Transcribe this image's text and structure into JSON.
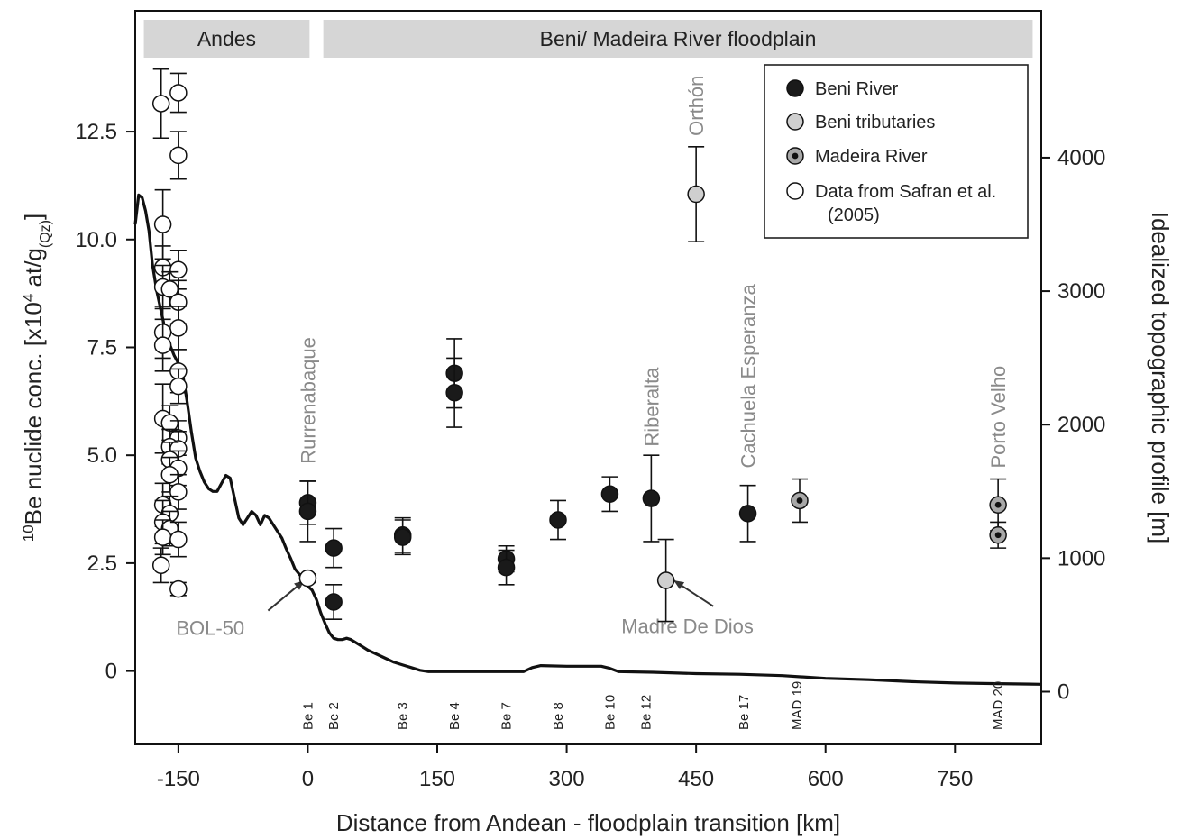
{
  "chart_data": {
    "type": "scatter",
    "xlabel": "Distance from Andean - floodplain transition [km]",
    "ylabel_prefix": "10",
    "ylabel_main": "Be nuclide conc. [x10",
    "ylabel_exp": "4",
    "ylabel_mid": " at/g",
    "ylabel_sub": "(Qz)",
    "ylabel_end": "]",
    "y2label": "Idealized topographic profile [m]",
    "xlim": [
      -200,
      850
    ],
    "ylim": [
      -1.7,
      15.3
    ],
    "y2lim": [
      -395,
      5100
    ],
    "x_ticks": [
      -150,
      0,
      150,
      300,
      450,
      600,
      750
    ],
    "x_tick_labels": [
      "-150",
      "0",
      "150",
      "300",
      "450",
      "600",
      "750"
    ],
    "y_ticks": [
      0,
      2.5,
      5.0,
      7.5,
      10.0,
      12.5
    ],
    "y_tick_labels": [
      "0",
      "2.5",
      "5.0",
      "7.5",
      "10.0",
      "12.5"
    ],
    "y2_ticks": [
      0,
      1000,
      2000,
      3000,
      4000
    ],
    "y2_tick_labels": [
      "0",
      "1000",
      "2000",
      "3000",
      "4000"
    ],
    "bands": [
      {
        "label": "Andes",
        "x0": -190,
        "x1": 2
      },
      {
        "label": "Beni/ Madeira River floodplain",
        "x0": 18,
        "x1": 840
      }
    ],
    "legend": [
      {
        "label": "Beni River",
        "style": "black",
        "color": "#1a1a1a"
      },
      {
        "label": "Beni tributaries",
        "style": "gray",
        "color": "#cfcfcf"
      },
      {
        "label": "Madeira River",
        "style": "dot",
        "color": "#7a7a7a"
      },
      {
        "label": "Data from Safran et al.",
        "label2": "(2005)",
        "style": "white",
        "color": "#ffffff"
      }
    ],
    "series": [
      {
        "name": "Beni River",
        "style": "black",
        "points": [
          {
            "x": 0,
            "y": 3.9,
            "err": 0.5
          },
          {
            "x": 0,
            "y": 3.7,
            "err": 0.7
          },
          {
            "x": 30,
            "y": 2.85,
            "err": 0.45
          },
          {
            "x": 30,
            "y": 1.6,
            "err": 0.4
          },
          {
            "x": 110,
            "y": 3.15,
            "err": 0.4
          },
          {
            "x": 110,
            "y": 3.1,
            "err": 0.4
          },
          {
            "x": 170,
            "y": 6.9,
            "err": 0.8
          },
          {
            "x": 170,
            "y": 6.45,
            "err": 0.8
          },
          {
            "x": 230,
            "y": 2.6,
            "err": 0.3
          },
          {
            "x": 230,
            "y": 2.4,
            "err": 0.4
          },
          {
            "x": 290,
            "y": 3.5,
            "err": 0.45
          },
          {
            "x": 350,
            "y": 4.1,
            "err": 0.4
          },
          {
            "x": 398,
            "y": 4.0,
            "err": 1.0
          },
          {
            "x": 510,
            "y": 3.65,
            "err": 0.65
          }
        ]
      },
      {
        "name": "Beni tributaries",
        "style": "gray",
        "points": [
          {
            "x": 450,
            "y": 11.05,
            "err": 1.1
          },
          {
            "x": 415,
            "y": 2.1,
            "err": 0.95
          }
        ]
      },
      {
        "name": "Madeira River",
        "style": "dot",
        "points": [
          {
            "x": 570,
            "y": 3.95,
            "err": 0.5
          },
          {
            "x": 800,
            "y": 3.85,
            "err": 0.6
          },
          {
            "x": 800,
            "y": 3.15,
            "err": 0.3
          }
        ]
      },
      {
        "name": "Data from Safran et al. (2005)",
        "style": "white",
        "points": [
          {
            "x": -170,
            "y": 13.15,
            "err": 0.8
          },
          {
            "x": -150,
            "y": 13.4,
            "err": 0.45
          },
          {
            "x": -150,
            "y": 11.95,
            "err": 0.55
          },
          {
            "x": -168,
            "y": 10.35,
            "err": 0.8
          },
          {
            "x": -168,
            "y": 9.35,
            "err": 0.5
          },
          {
            "x": -150,
            "y": 9.3,
            "err": 0.45
          },
          {
            "x": -168,
            "y": 8.9,
            "err": 0.5
          },
          {
            "x": -160,
            "y": 8.85,
            "err": 0.4
          },
          {
            "x": -150,
            "y": 8.55,
            "err": 0.5
          },
          {
            "x": -150,
            "y": 7.95,
            "err": 0.5
          },
          {
            "x": -168,
            "y": 7.85,
            "err": 0.6
          },
          {
            "x": -168,
            "y": 7.55,
            "err": 0.6
          },
          {
            "x": -150,
            "y": 6.95,
            "err": 0.5
          },
          {
            "x": -150,
            "y": 6.6,
            "err": 0.4
          },
          {
            "x": -168,
            "y": 5.85,
            "err": 0.8
          },
          {
            "x": -160,
            "y": 5.75,
            "err": 0.4
          },
          {
            "x": -150,
            "y": 5.4,
            "err": 0.4
          },
          {
            "x": -160,
            "y": 5.2,
            "err": 0.4
          },
          {
            "x": -150,
            "y": 5.15,
            "err": 0.4
          },
          {
            "x": -160,
            "y": 4.9,
            "err": 0.4
          },
          {
            "x": -150,
            "y": 4.7,
            "err": 0.4
          },
          {
            "x": -160,
            "y": 4.55,
            "err": 0.4
          },
          {
            "x": -150,
            "y": 4.15,
            "err": 0.4
          },
          {
            "x": -168,
            "y": 3.85,
            "err": 0.5
          },
          {
            "x": -160,
            "y": 3.65,
            "err": 0.4
          },
          {
            "x": -168,
            "y": 3.45,
            "err": 0.5
          },
          {
            "x": -160,
            "y": 3.3,
            "err": 0.4
          },
          {
            "x": -168,
            "y": 3.1,
            "err": 0.4
          },
          {
            "x": -150,
            "y": 3.05,
            "err": 0.4
          },
          {
            "x": -170,
            "y": 2.45,
            "err": 0.4
          },
          {
            "x": -150,
            "y": 1.9,
            "err": 0.15
          },
          {
            "x": 0,
            "y": 2.15,
            "err": 0.1
          }
        ]
      }
    ],
    "topo_profile": {
      "x": [
        -200,
        -196,
        -192,
        -188,
        -184,
        -180,
        -175,
        -170,
        -165,
        -160,
        -155,
        -150,
        -145,
        -140,
        -135,
        -130,
        -125,
        -120,
        -115,
        -110,
        -105,
        -100,
        -95,
        -90,
        -85,
        -80,
        -75,
        -70,
        -65,
        -60,
        -55,
        -50,
        -45,
        -40,
        -35,
        -30,
        -25,
        -20,
        -15,
        -10,
        -5,
        0,
        5,
        10,
        15,
        20,
        25,
        30,
        35,
        40,
        45,
        50,
        60,
        70,
        80,
        90,
        100,
        110,
        120,
        130,
        140,
        150,
        160,
        200,
        250,
        260,
        270,
        300,
        340,
        350,
        360,
        400,
        450,
        500,
        550,
        600,
        650,
        700,
        750,
        800,
        850
      ],
      "y": [
        3500,
        3720,
        3700,
        3600,
        3450,
        3200,
        3000,
        2850,
        2700,
        2600,
        2520,
        2460,
        2380,
        2180,
        1950,
        1750,
        1650,
        1570,
        1520,
        1500,
        1500,
        1560,
        1620,
        1600,
        1450,
        1300,
        1250,
        1300,
        1350,
        1320,
        1250,
        1320,
        1300,
        1250,
        1200,
        1150,
        1070,
        1000,
        920,
        880,
        840,
        790,
        760,
        690,
        590,
        510,
        440,
        400,
        390,
        390,
        400,
        390,
        350,
        310,
        280,
        250,
        220,
        200,
        180,
        160,
        150,
        150,
        150,
        150,
        150,
        180,
        195,
        190,
        190,
        175,
        150,
        145,
        135,
        130,
        120,
        100,
        90,
        75,
        65,
        60,
        55
      ]
    },
    "site_labels": [
      {
        "text": "Rurrenabaque",
        "x": 0,
        "y": 4.8
      },
      {
        "text": "Riberalta",
        "x": 398,
        "y": 5.2
      },
      {
        "text": "Cachuela Esperanza",
        "x": 510,
        "y": 4.7
      },
      {
        "text": "Porto Velho",
        "x": 800,
        "y": 4.7
      },
      {
        "text": "Orthón",
        "x": 450,
        "y": 12.4
      }
    ],
    "annotations": [
      {
        "text": "BOL-50",
        "tx": -113,
        "ty": 1.0,
        "ax": -4,
        "ay": 2.1,
        "sx": -46,
        "sy": 1.4
      },
      {
        "text": "Madre De Dios",
        "tx": 440,
        "ty": 1.05,
        "ax": 424,
        "ay": 2.1,
        "sx": 470,
        "sy": 1.5
      }
    ],
    "sample_labels": [
      {
        "text": "Be 1",
        "x": 0
      },
      {
        "text": "Be 2",
        "x": 30
      },
      {
        "text": "Be 3",
        "x": 110
      },
      {
        "text": "Be 4",
        "x": 170
      },
      {
        "text": "Be 7",
        "x": 230
      },
      {
        "text": "Be 8",
        "x": 290
      },
      {
        "text": "Be 10",
        "x": 350
      },
      {
        "text": "Be 12",
        "x": 392
      },
      {
        "text": "Be 17",
        "x": 505
      },
      {
        "text": "MAD 19",
        "x": 567
      },
      {
        "text": "MAD 20",
        "x": 800
      }
    ]
  }
}
